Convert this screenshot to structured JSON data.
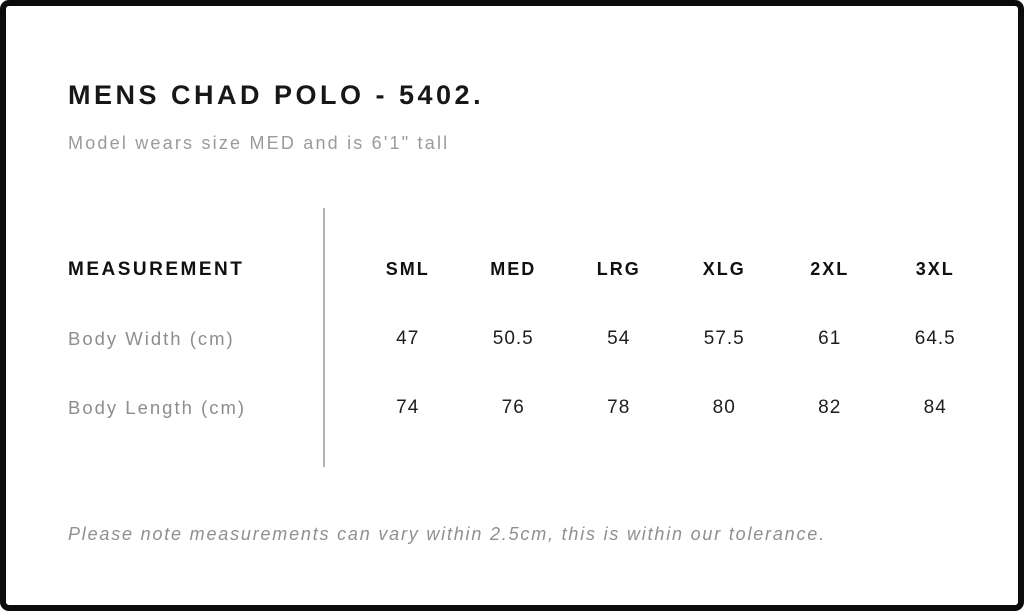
{
  "page": {
    "title": "MENS CHAD POLO - 5402.",
    "subtitle": "Model wears size MED and is 6'1\" tall",
    "tolerance_note": "Please note measurements can vary within 2.5cm, this is within our tolerance."
  },
  "size_table": {
    "measurement_header": "MEASUREMENT",
    "size_headers": [
      "SML",
      "MED",
      "LRG",
      "XLG",
      "2XL",
      "3XL"
    ],
    "rows": [
      {
        "label": "Body Width (cm)",
        "values": [
          "47",
          "50.5",
          "54",
          "57.5",
          "61",
          "64.5"
        ]
      },
      {
        "label": "Body Length (cm)",
        "values": [
          "74",
          "76",
          "78",
          "80",
          "82",
          "84"
        ]
      }
    ]
  },
  "chart_data": {
    "type": "table",
    "title": "MENS CHAD POLO - 5402.",
    "subtitle": "Model wears size MED and is 6'1\" tall",
    "columns": [
      "MEASUREMENT",
      "SML",
      "MED",
      "LRG",
      "XLG",
      "2XL",
      "3XL"
    ],
    "rows": [
      [
        "Body Width (cm)",
        47,
        50.5,
        54,
        57.5,
        61,
        64.5
      ],
      [
        "Body Length (cm)",
        74,
        76,
        78,
        80,
        82,
        84
      ]
    ],
    "footnote": "Please note measurements can vary within 2.5cm, this is within our tolerance."
  },
  "colors": {
    "frame_border": "#0b0b0b",
    "primary_text": "#171717",
    "muted_text": "#9a9a9a",
    "divider": "#b3b3b3"
  }
}
